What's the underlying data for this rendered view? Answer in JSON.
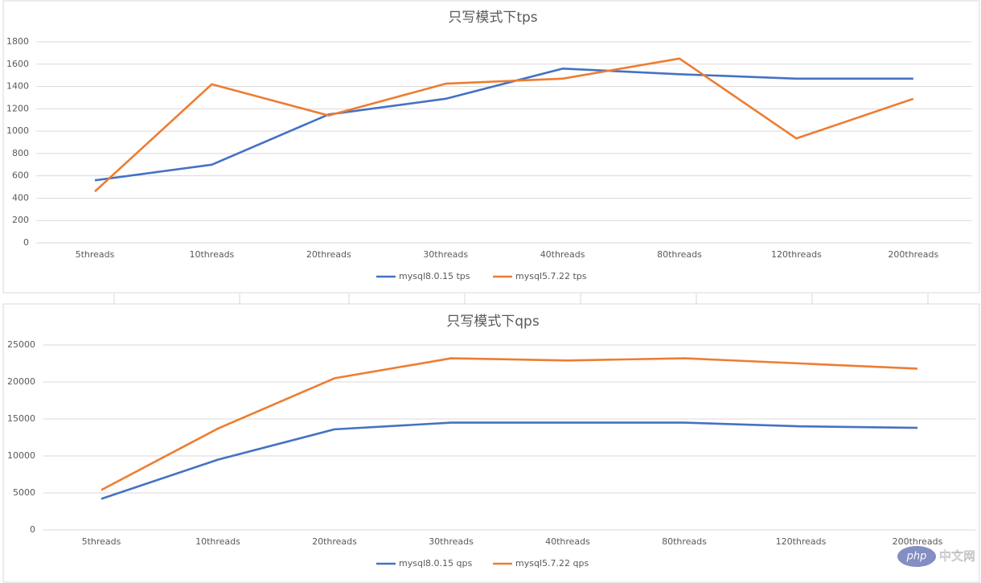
{
  "chart_data": [
    {
      "type": "line",
      "title": "只写模式下tps",
      "categories": [
        "5threads",
        "10threads",
        "20threads",
        "30threads",
        "40threads",
        "80threads",
        "120threads",
        "200threads"
      ],
      "series": [
        {
          "name": "mysql8.0.15 tps",
          "color": "#4472c4",
          "values": [
            560,
            700,
            1150,
            1290,
            1560,
            1510,
            1470,
            1470
          ]
        },
        {
          "name": "mysql5.7.22 tps",
          "color": "#ed7d31",
          "values": [
            460,
            1420,
            1140,
            1425,
            1470,
            1650,
            935,
            1290
          ]
        }
      ],
      "ylim": [
        0,
        1800
      ],
      "yticks": [
        0,
        200,
        400,
        600,
        800,
        1000,
        1200,
        1400,
        1600,
        1800
      ],
      "grid": true,
      "legend": "bottom"
    },
    {
      "type": "line",
      "title": "只写模式下qps",
      "categories": [
        "5threads",
        "10threads",
        "20threads",
        "30threads",
        "40threads",
        "80threads",
        "120threads",
        "200threads"
      ],
      "series": [
        {
          "name": "mysql8.0.15 qps",
          "color": "#4472c4",
          "values": [
            4200,
            9500,
            13600,
            14500,
            14500,
            14500,
            14000,
            13800
          ]
        },
        {
          "name": "mysql5.7.22 qps",
          "color": "#ed7d31",
          "values": [
            5400,
            13700,
            20500,
            23200,
            22900,
            23200,
            22500,
            21800
          ]
        }
      ],
      "ylim": [
        0,
        25000
      ],
      "yticks": [
        0,
        5000,
        10000,
        15000,
        20000,
        25000
      ],
      "grid": true,
      "legend": "bottom"
    }
  ],
  "watermark": {
    "logo": "php",
    "text": "中文网"
  }
}
